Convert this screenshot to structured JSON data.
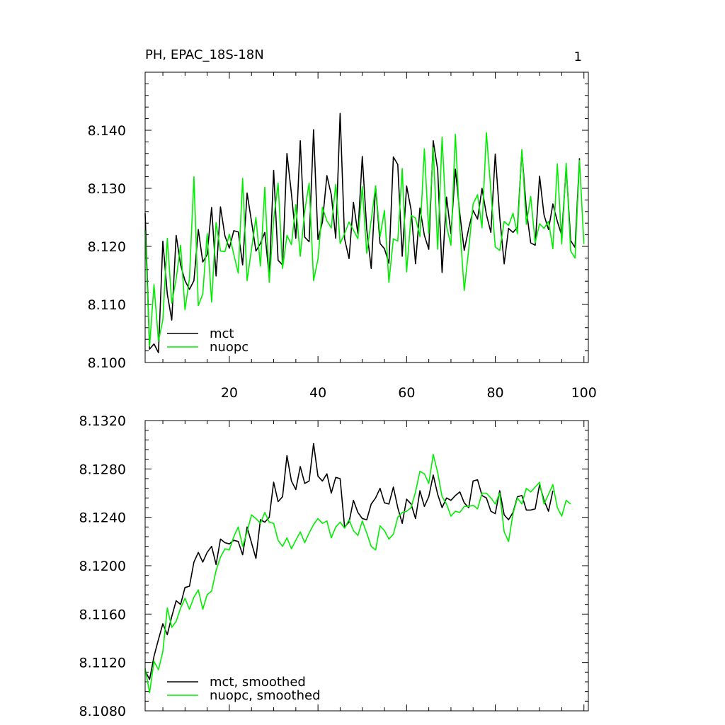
{
  "chart_data": [
    {
      "type": "line",
      "title": "PH, EPAC_18S-18N",
      "corner_label": "1",
      "xlim": [
        1,
        101
      ],
      "ylim": [
        8.1,
        8.15
      ],
      "yticks": [
        8.1,
        8.11,
        8.12,
        8.13,
        8.14
      ],
      "ytick_labels": [
        "8.100",
        "8.110",
        "8.120",
        "8.130",
        "8.140"
      ],
      "xticks": [
        20,
        40,
        60,
        80,
        100
      ],
      "xtick_labels": [
        "20",
        "40",
        "60",
        "80",
        "100"
      ],
      "legend": {
        "placement": "bottom-left",
        "entries": [
          "mct",
          "nuopc"
        ]
      },
      "series": [
        {
          "name": "mct",
          "color": "#000000",
          "x_start": 1,
          "values": [
            8.1257,
            8.1023,
            8.1032,
            8.1017,
            8.1209,
            8.1118,
            8.1073,
            8.1219,
            8.1168,
            8.1141,
            8.1126,
            8.1141,
            8.1229,
            8.1173,
            8.1186,
            8.1267,
            8.1149,
            8.1268,
            8.1218,
            8.1197,
            8.1227,
            8.1225,
            8.1168,
            8.1292,
            8.1243,
            8.1192,
            8.1205,
            8.1224,
            8.1148,
            8.1331,
            8.1176,
            8.1168,
            8.136,
            8.1291,
            8.1214,
            8.1382,
            8.1216,
            8.1208,
            8.1401,
            8.1212,
            8.1242,
            8.1322,
            8.1289,
            8.1214,
            8.1429,
            8.1213,
            8.1179,
            8.1276,
            8.1222,
            8.1355,
            8.1229,
            8.1162,
            8.1304,
            8.1205,
            8.1196,
            8.1171,
            8.1354,
            8.1341,
            8.1183,
            8.1304,
            8.1263,
            8.117,
            8.1266,
            8.1219,
            8.1195,
            8.1382,
            8.1332,
            8.1155,
            8.1285,
            8.1222,
            8.1333,
            8.1256,
            8.1193,
            8.1231,
            8.1262,
            8.1247,
            8.13,
            8.1255,
            8.1224,
            8.1359,
            8.1251,
            8.117,
            8.1231,
            8.1224,
            8.1233,
            8.1364,
            8.1263,
            8.1206,
            8.1202,
            8.1321,
            8.1254,
            8.1229,
            8.1273,
            8.1243,
            8.1219,
            8.1337,
            8.121,
            8.1198,
            8.1352
          ]
        },
        {
          "name": "nuopc",
          "color": "#00ee00",
          "x_start": 1,
          "values": [
            8.1228,
            8.1028,
            8.1134,
            8.1037,
            8.1073,
            8.1214,
            8.1102,
            8.1144,
            8.1202,
            8.1091,
            8.1145,
            8.132,
            8.1098,
            8.1118,
            8.1222,
            8.1104,
            8.1241,
            8.1192,
            8.1191,
            8.1221,
            8.1186,
            8.1154,
            8.1317,
            8.1141,
            8.1195,
            8.125,
            8.1166,
            8.1302,
            8.1138,
            8.1246,
            8.1309,
            8.1162,
            8.1219,
            8.1203,
            8.1272,
            8.1183,
            8.1261,
            8.1309,
            8.1141,
            8.1178,
            8.1267,
            8.1244,
            8.1232,
            8.1307,
            8.1205,
            8.1222,
            8.1242,
            8.1228,
            8.1213,
            8.1303,
            8.1188,
            8.1245,
            8.1304,
            8.1217,
            8.1262,
            8.1138,
            8.1213,
            8.1209,
            8.1334,
            8.1156,
            8.1253,
            8.1249,
            8.1217,
            8.1368,
            8.1222,
            8.137,
            8.1195,
            8.1388,
            8.1235,
            8.1202,
            8.1393,
            8.1233,
            8.1124,
            8.1195,
            8.1273,
            8.1289,
            8.1232,
            8.1396,
            8.1296,
            8.1199,
            8.1193,
            8.1243,
            8.1236,
            8.1257,
            8.1222,
            8.1367,
            8.1238,
            8.1286,
            8.1206,
            8.1239,
            8.1231,
            8.1243,
            8.1196,
            8.1342,
            8.1204,
            8.1343,
            8.1192,
            8.118,
            8.1348,
            8.1204
          ]
        }
      ]
    },
    {
      "type": "line",
      "title": "",
      "xlim": [
        1,
        101
      ],
      "ylim": [
        8.108,
        8.132
      ],
      "yticks": [
        8.108,
        8.112,
        8.116,
        8.12,
        8.124,
        8.128,
        8.132
      ],
      "ytick_labels": [
        "8.1080",
        "8.1120",
        "8.1160",
        "8.1200",
        "8.1240",
        "8.1280",
        "8.1320"
      ],
      "xticks": [
        20,
        40,
        60,
        80,
        100
      ],
      "xtick_labels": [],
      "legend": {
        "placement": "bottom-left",
        "entries": [
          "mct, smoothed",
          "nuopc, smoothed"
        ]
      },
      "series": [
        {
          "name": "mct, smoothed",
          "color": "#000000",
          "x_start": 1,
          "values": [
            8.1113,
            8.1106,
            8.1125,
            8.1139,
            8.1152,
            8.1143,
            8.1158,
            8.1171,
            8.1168,
            8.1182,
            8.1183,
            8.1203,
            8.1211,
            8.1203,
            8.1211,
            8.1216,
            8.1201,
            8.1222,
            8.1219,
            8.1218,
            8.1221,
            8.122,
            8.1209,
            8.1232,
            8.1219,
            8.1206,
            8.1238,
            8.1236,
            8.124,
            8.1269,
            8.1253,
            8.1257,
            8.1291,
            8.127,
            8.1263,
            8.1282,
            8.1268,
            8.127,
            8.1301,
            8.1274,
            8.127,
            8.1276,
            8.126,
            8.1273,
            8.1272,
            8.1232,
            8.1236,
            8.1254,
            8.1244,
            8.1239,
            8.1238,
            8.1251,
            8.1256,
            8.1264,
            8.1252,
            8.1251,
            8.1265,
            8.1248,
            8.1235,
            8.1255,
            8.1251,
            8.1239,
            8.1262,
            8.1249,
            8.1257,
            8.1275,
            8.1259,
            8.1248,
            8.1256,
            8.1254,
            8.1258,
            8.1261,
            8.1252,
            8.1248,
            8.127,
            8.1271,
            8.1258,
            8.1256,
            8.1245,
            8.1243,
            8.1262,
            8.1242,
            8.1238,
            8.1244,
            8.1257,
            8.1258,
            8.1246,
            8.1246,
            8.1247,
            8.1267,
            8.1254,
            8.1245,
            8.1262
          ]
        },
        {
          "name": "nuopc, smoothed",
          "color": "#00ee00",
          "x_start": 1,
          "values": [
            8.1115,
            8.1095,
            8.1121,
            8.1114,
            8.1129,
            8.1165,
            8.1149,
            8.1154,
            8.1165,
            8.1173,
            8.1164,
            8.1174,
            8.118,
            8.1164,
            8.1176,
            8.1179,
            8.1196,
            8.1207,
            8.1214,
            8.1213,
            8.1224,
            8.1232,
            8.1216,
            8.1228,
            8.1242,
            8.1239,
            8.1235,
            8.1244,
            8.1236,
            8.1235,
            8.1221,
            8.1216,
            8.1223,
            8.1214,
            8.1221,
            8.1228,
            8.1219,
            8.1227,
            8.1234,
            8.1239,
            8.1235,
            8.1237,
            8.1223,
            8.1232,
            8.1236,
            8.1231,
            8.1238,
            8.1229,
            8.1225,
            8.1237,
            8.1227,
            8.1216,
            8.1213,
            8.1233,
            8.1229,
            8.1222,
            8.1226,
            8.124,
            8.1244,
            8.1245,
            8.1248,
            8.1261,
            8.1278,
            8.1276,
            8.1268,
            8.1292,
            8.1277,
            8.1257,
            8.1251,
            8.1241,
            8.1245,
            8.1244,
            8.1249,
            8.1249,
            8.125,
            8.1247,
            8.126,
            8.126,
            8.1256,
            8.1251,
            8.126,
            8.1228,
            8.122,
            8.1243,
            8.1256,
            8.1251,
            8.1264,
            8.1261,
            8.1265,
            8.1269,
            8.1251,
            8.1259,
            8.1267,
            8.1248,
            8.1241,
            8.1254,
            8.1251
          ]
        }
      ]
    }
  ]
}
